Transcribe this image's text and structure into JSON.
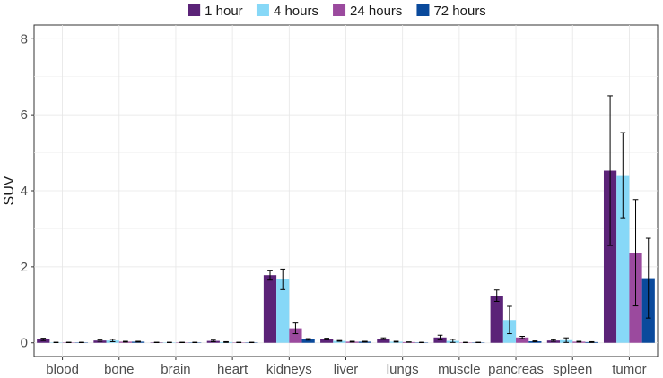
{
  "chart_data": {
    "type": "bar",
    "title": "",
    "xlabel": "",
    "ylabel": "SUV",
    "ylim": [
      0,
      8
    ],
    "yticks": [
      0,
      2,
      4,
      6,
      8
    ],
    "grid": true,
    "legend_position": "top",
    "categories": [
      "blood",
      "bone",
      "brain",
      "heart",
      "kidneys",
      "liver",
      "lungs",
      "muscle",
      "pancreas",
      "spleen",
      "tumor"
    ],
    "series": [
      {
        "name": "1 hour",
        "color": "#5B2378",
        "values": [
          0.09,
          0.06,
          0.01,
          0.05,
          1.78,
          0.1,
          0.11,
          0.14,
          1.24,
          0.06,
          4.53
        ],
        "errors": [
          0.03,
          0.02,
          0.005,
          0.02,
          0.13,
          0.02,
          0.02,
          0.06,
          0.15,
          0.02,
          1.97
        ]
      },
      {
        "name": "4 hours",
        "color": "#87D8F7",
        "values": [
          0.01,
          0.06,
          0.01,
          0.02,
          1.67,
          0.05,
          0.03,
          0.05,
          0.6,
          0.07,
          4.41
        ],
        "errors": [
          0.005,
          0.03,
          0.005,
          0.01,
          0.27,
          0.01,
          0.01,
          0.04,
          0.36,
          0.06,
          1.12
        ]
      },
      {
        "name": "24 hours",
        "color": "#9B4A9E",
        "values": [
          0.01,
          0.03,
          0.01,
          0.01,
          0.38,
          0.03,
          0.02,
          0.01,
          0.14,
          0.03,
          2.37
        ],
        "errors": [
          0.005,
          0.01,
          0.005,
          0.005,
          0.14,
          0.01,
          0.005,
          0.005,
          0.03,
          0.01,
          1.4
        ]
      },
      {
        "name": "72 hours",
        "color": "#0A4A9C",
        "values": [
          0.01,
          0.03,
          0.01,
          0.01,
          0.09,
          0.03,
          0.01,
          0.01,
          0.04,
          0.02,
          1.7
        ],
        "errors": [
          0.005,
          0.01,
          0.005,
          0.005,
          0.02,
          0.01,
          0.005,
          0.005,
          0.01,
          0.01,
          1.05
        ]
      }
    ]
  }
}
